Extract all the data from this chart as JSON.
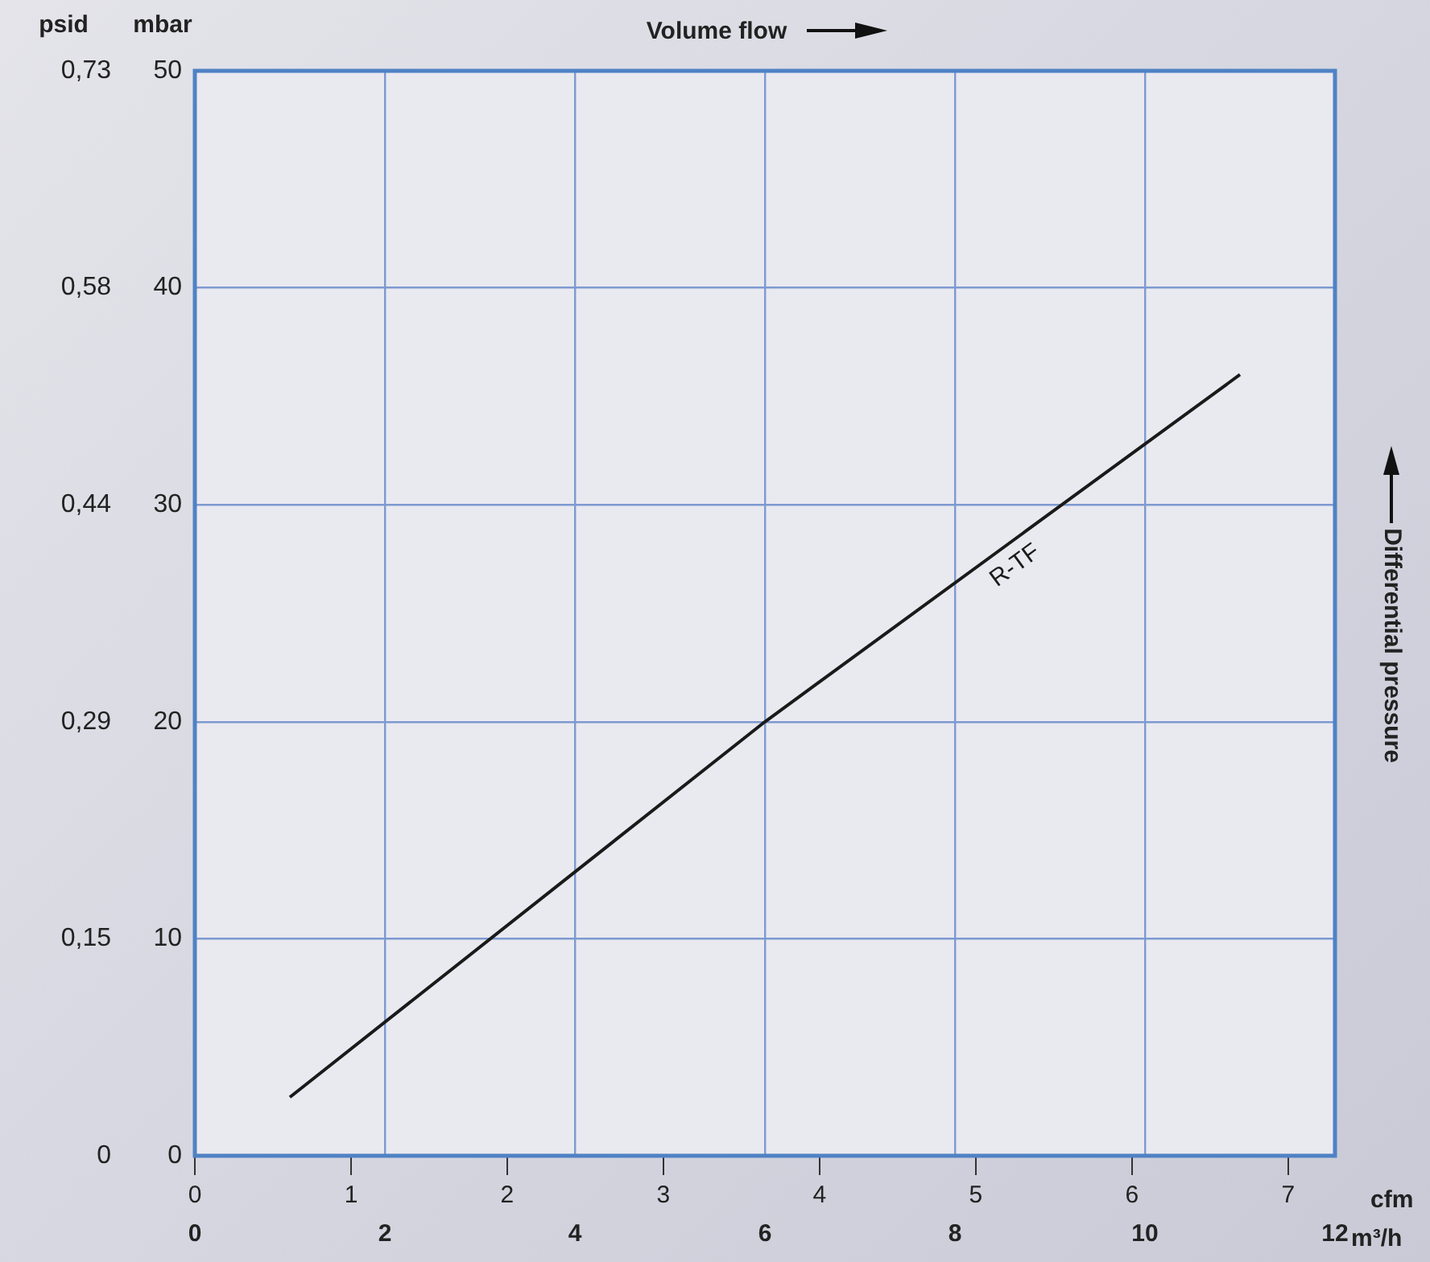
{
  "chart_data": {
    "type": "line",
    "title": "Volume flow",
    "xlabel": "m³/h",
    "x2label": "cfm",
    "ylabel": "mbar",
    "y2label": "psid",
    "annotations": [
      "Differential pressure"
    ],
    "series": [
      {
        "name": "R-TF",
        "color": "#1a1a1a",
        "x": [
          1,
          6,
          11
        ],
        "values": [
          2.7,
          20,
          36
        ]
      }
    ],
    "xlim": [
      0,
      12
    ],
    "xticks": [
      0,
      2,
      4,
      6,
      8,
      10,
      12
    ],
    "x2lim": [
      0,
      7.3
    ],
    "x2ticks": [
      0,
      1,
      2,
      3,
      4,
      5,
      6,
      7
    ],
    "ylim": [
      0,
      50
    ],
    "yticks": [
      0,
      10,
      20,
      30,
      40,
      50
    ],
    "y2lim": [
      0,
      0.73
    ],
    "y2ticks": [
      {
        "value": 0,
        "label": "0"
      },
      {
        "value": 0.146,
        "label": "0,15"
      },
      {
        "value": 0.292,
        "label": "0,29"
      },
      {
        "value": 0.438,
        "label": "0,44"
      },
      {
        "value": 0.584,
        "label": "0,58"
      },
      {
        "value": 0.73,
        "label": "0,73"
      }
    ],
    "grid": true,
    "marker": "none"
  }
}
